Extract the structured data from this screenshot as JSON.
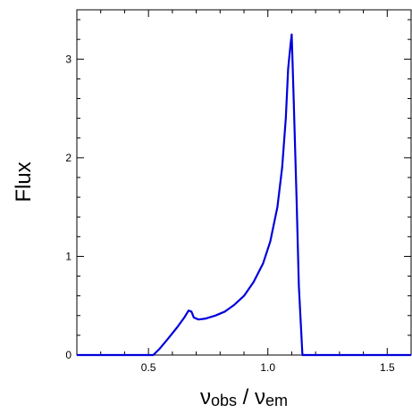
{
  "chart_data": {
    "type": "line",
    "xlabel_main_1": "ν",
    "xlabel_sub_1": "obs",
    "xlabel_sep": " / ",
    "xlabel_main_2": "ν",
    "xlabel_sub_2": "em",
    "ylabel": "Flux",
    "xlim": [
      0.2,
      1.6
    ],
    "ylim": [
      0,
      3.5
    ],
    "x_major_ticks": [
      0.5,
      1.0,
      1.5
    ],
    "x_major_tick_labels": [
      "0.5",
      "1.0",
      "1.5"
    ],
    "y_major_ticks": [
      0,
      1,
      2,
      3
    ],
    "y_major_tick_labels": [
      "0",
      "1",
      "2",
      "3"
    ],
    "x_minor_step": 0.1,
    "y_minor_step": 0.2,
    "line_color": "#0000dd",
    "series": [
      {
        "x": [
          0.2,
          0.52,
          0.545,
          0.58,
          0.62,
          0.65,
          0.668,
          0.68,
          0.69,
          0.71,
          0.74,
          0.78,
          0.82,
          0.86,
          0.9,
          0.94,
          0.98,
          1.01,
          1.04,
          1.06,
          1.075,
          1.085,
          1.095,
          1.1,
          1.108,
          1.12,
          1.13,
          1.145,
          1.6
        ],
        "y": [
          0,
          0,
          0.06,
          0.16,
          0.28,
          0.38,
          0.45,
          0.44,
          0.38,
          0.36,
          0.37,
          0.4,
          0.44,
          0.51,
          0.6,
          0.74,
          0.93,
          1.15,
          1.5,
          1.9,
          2.4,
          2.9,
          3.15,
          3.25,
          2.6,
          1.6,
          0.7,
          0,
          0
        ]
      }
    ]
  }
}
